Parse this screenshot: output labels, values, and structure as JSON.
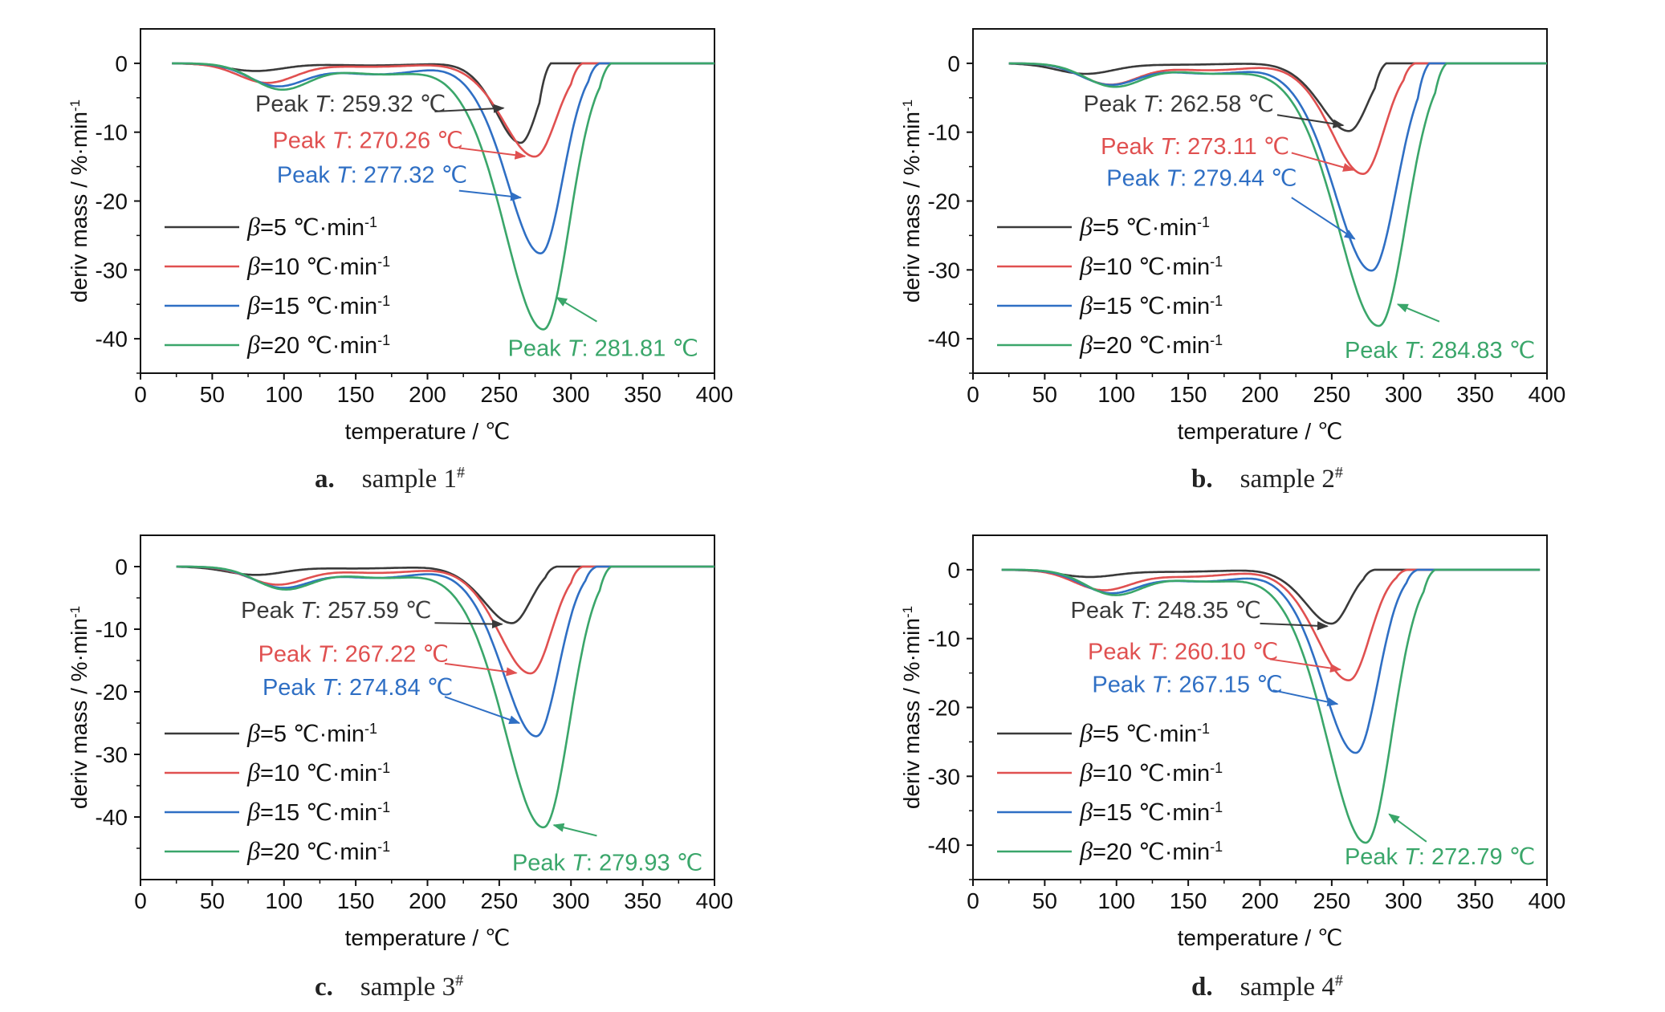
{
  "figure": {
    "colors": {
      "bg": "#ffffff",
      "axis": "#111111"
    },
    "legend": {
      "unit_label": "℃·min",
      "unit_sup": "-1",
      "entries": [
        {
          "symbol": "β",
          "value": "=5",
          "color": "#3a3a3a"
        },
        {
          "symbol": "β",
          "value": "=10",
          "color": "#e05050"
        },
        {
          "symbol": "β",
          "value": "=15",
          "color": "#2f6fc4"
        },
        {
          "symbol": "β",
          "value": "=20",
          "color": "#3aa66a"
        }
      ]
    },
    "peak_prefix": "Peak",
    "peak_var": "T",
    "peak_unit": "℃"
  },
  "chart_data": [
    {
      "type": "line",
      "caption_letter": "a.",
      "caption_text": "sample 1",
      "caption_sup": "#",
      "xlabel": "temperature / ℃",
      "ylabel": "deriv mass / %·min",
      "ylabel_sup": "-1",
      "xlim": [
        0,
        400
      ],
      "ylim": [
        -45,
        5
      ],
      "xticks": [
        "0",
        "50",
        "100",
        "150",
        "200",
        "250",
        "300",
        "350",
        "400"
      ],
      "yticks": [
        "0",
        "-10",
        "-20",
        "-30",
        "-40"
      ],
      "series": [
        {
          "name": "β=5 ℃·min-1",
          "peak_x": 265,
          "peak_y": -11.5,
          "peak_label": ": 259.32 ℃",
          "profile": {
            "start": 22,
            "end": 400,
            "early_x": 80,
            "early_y": -1.1,
            "plateau_x": 160,
            "plateau_y": -0.3,
            "return_x": 278,
            "width": 13
          },
          "arrow": {
            "from_x": 205,
            "from_y": -7.0,
            "to_x": 253,
            "to_y": -6.5
          }
        },
        {
          "name": "β=10 ℃·min-1",
          "peak_x": 275,
          "peak_y": -13.5,
          "peak_label": ": 270.26 ℃",
          "profile": {
            "start": 22,
            "end": 400,
            "early_x": 88,
            "early_y": -2.8,
            "plateau_x": 160,
            "plateau_y": -0.5,
            "return_x": 300,
            "width": 17
          },
          "arrow": {
            "from_x": 222,
            "from_y": -12.3,
            "to_x": 268,
            "to_y": -13.5
          }
        },
        {
          "name": "β=15 ℃·min-1",
          "peak_x": 279,
          "peak_y": -27.5,
          "peak_label": ": 277.32 ℃",
          "profile": {
            "start": 22,
            "end": 400,
            "early_x": 95,
            "early_y": -3.2,
            "plateau_x": 165,
            "plateau_y": -1.6,
            "return_x": 312,
            "width": 18
          },
          "arrow": {
            "from_x": 222,
            "from_y": -18.5,
            "to_x": 265,
            "to_y": -19.5
          }
        },
        {
          "name": "β=20 ℃·min-1",
          "peak_x": 281,
          "peak_y": -38.5,
          "peak_label": ": 281.81 ℃",
          "profile": {
            "start": 22,
            "end": 400,
            "early_x": 98,
            "early_y": -3.7,
            "plateau_x": 170,
            "plateau_y": -1.6,
            "return_x": 320,
            "width": 21
          },
          "arrow": {
            "from_x": 318,
            "from_y": -37.5,
            "to_x": 290,
            "to_y": -34.0
          }
        }
      ],
      "labels": [
        {
          "x": 80,
          "y": -7.0
        },
        {
          "x": 92,
          "y": -12.3
        },
        {
          "x": 95,
          "y": -17.3
        },
        {
          "x": 256,
          "y": -42.5
        }
      ]
    },
    {
      "type": "line",
      "caption_letter": "b.",
      "caption_text": "sample 2",
      "caption_sup": "#",
      "xlabel": "temperature / ℃",
      "ylabel": "deriv mass / %·min",
      "ylabel_sup": "-1",
      "xlim": [
        0,
        400
      ],
      "ylim": [
        -45,
        5
      ],
      "xticks": [
        "0",
        "50",
        "100",
        "150",
        "200",
        "250",
        "300",
        "350",
        "400"
      ],
      "yticks": [
        "0",
        "-10",
        "-20",
        "-30",
        "-40"
      ],
      "series": [
        {
          "name": "β=5 ℃·min-1",
          "peak_x": 262,
          "peak_y": -9.8,
          "peak_label": ": 262.58 ℃",
          "profile": {
            "start": 25,
            "end": 400,
            "early_x": 78,
            "early_y": -1.5,
            "plateau_x": 140,
            "plateau_y": -0.2,
            "return_x": 280,
            "width": 15
          },
          "arrow": {
            "from_x": 212,
            "from_y": -7.5,
            "to_x": 258,
            "to_y": -9.0
          }
        },
        {
          "name": "β=10 ℃·min-1",
          "peak_x": 272,
          "peak_y": -16.0,
          "peak_label": ": 273.11 ℃",
          "profile": {
            "start": 25,
            "end": 400,
            "early_x": 95,
            "early_y": -3.0,
            "plateau_x": 165,
            "plateau_y": -1.0,
            "return_x": 300,
            "width": 17
          },
          "arrow": {
            "from_x": 222,
            "from_y": -13.0,
            "to_x": 265,
            "to_y": -15.5
          }
        },
        {
          "name": "β=15 ℃·min-1",
          "peak_x": 278,
          "peak_y": -30.0,
          "peak_label": ": 279.44 ℃",
          "profile": {
            "start": 25,
            "end": 400,
            "early_x": 95,
            "early_y": -3.0,
            "plateau_x": 165,
            "plateau_y": -1.5,
            "return_x": 310,
            "width": 20
          },
          "arrow": {
            "from_x": 222,
            "from_y": -19.5,
            "to_x": 266,
            "to_y": -25.5
          }
        },
        {
          "name": "β=20 ℃·min-1",
          "peak_x": 283,
          "peak_y": -38.0,
          "peak_label": ": 284.83 ℃",
          "profile": {
            "start": 25,
            "end": 400,
            "early_x": 98,
            "early_y": -3.3,
            "plateau_x": 170,
            "plateau_y": -1.5,
            "return_x": 322,
            "width": 22
          },
          "arrow": {
            "from_x": 325,
            "from_y": -37.5,
            "to_x": 296,
            "to_y": -35.0
          }
        }
      ],
      "labels": [
        {
          "x": 77,
          "y": -7.0
        },
        {
          "x": 89,
          "y": -13.2
        },
        {
          "x": 93,
          "y": -17.8
        },
        {
          "x": 259,
          "y": -42.8
        }
      ]
    },
    {
      "type": "line",
      "caption_letter": "c.",
      "caption_text": "sample 3",
      "caption_sup": "#",
      "xlabel": "temperature / ℃",
      "ylabel": "deriv mass / %·min",
      "ylabel_sup": "-1",
      "xlim": [
        0,
        400
      ],
      "ylim": [
        -50,
        5
      ],
      "xticks": [
        "0",
        "50",
        "100",
        "150",
        "200",
        "250",
        "300",
        "350",
        "400"
      ],
      "yticks": [
        "0",
        "-10",
        "-20",
        "-30",
        "-40"
      ],
      "series": [
        {
          "name": "β=5 ℃·min-1",
          "peak_x": 259,
          "peak_y": -9.0,
          "peak_label": ": 257.59 ℃",
          "profile": {
            "start": 25,
            "end": 400,
            "early_x": 80,
            "early_y": -1.3,
            "plateau_x": 150,
            "plateau_y": -0.3,
            "return_x": 282,
            "width": 15
          },
          "arrow": {
            "from_x": 205,
            "from_y": -9.0,
            "to_x": 252,
            "to_y": -9.2
          }
        },
        {
          "name": "β=10 ℃·min-1",
          "peak_x": 272,
          "peak_y": -17.0,
          "peak_label": ": 267.22 ℃",
          "profile": {
            "start": 25,
            "end": 400,
            "early_x": 95,
            "early_y": -2.8,
            "plateau_x": 165,
            "plateau_y": -1.0,
            "return_x": 300,
            "width": 17
          },
          "arrow": {
            "from_x": 212,
            "from_y": -15.5,
            "to_x": 262,
            "to_y": -17.0
          }
        },
        {
          "name": "β=15 ℃·min-1",
          "peak_x": 276,
          "peak_y": -27.0,
          "peak_label": ": 274.84 ℃",
          "profile": {
            "start": 25,
            "end": 400,
            "early_x": 98,
            "early_y": -3.2,
            "plateau_x": 165,
            "plateau_y": -1.8,
            "return_x": 310,
            "width": 18
          },
          "arrow": {
            "from_x": 212,
            "from_y": -20.8,
            "to_x": 264,
            "to_y": -25.0
          }
        },
        {
          "name": "β=20 ℃·min-1",
          "peak_x": 281,
          "peak_y": -41.5,
          "peak_label": ": 279.93 ℃",
          "profile": {
            "start": 25,
            "end": 400,
            "early_x": 100,
            "early_y": -3.5,
            "plateau_x": 170,
            "plateau_y": -1.8,
            "return_x": 320,
            "width": 21
          },
          "arrow": {
            "from_x": 318,
            "from_y": -43.0,
            "to_x": 288,
            "to_y": -41.3
          }
        }
      ],
      "labels": [
        {
          "x": 70,
          "y": -8.2
        },
        {
          "x": 82,
          "y": -15.2
        },
        {
          "x": 85,
          "y": -20.5
        },
        {
          "x": 259,
          "y": -48.5
        }
      ]
    },
    {
      "type": "line",
      "caption_letter": "d.",
      "caption_text": "sample 4",
      "caption_sup": "#",
      "xlabel": "temperature / ℃",
      "ylabel": "deriv mass / %·min",
      "ylabel_sup": "-1",
      "xlim": [
        0,
        400
      ],
      "ylim": [
        -45,
        5
      ],
      "xticks": [
        "0",
        "50",
        "100",
        "150",
        "200",
        "250",
        "300",
        "350",
        "400"
      ],
      "yticks": [
        "0",
        "-10",
        "-20",
        "-30",
        "-40"
      ],
      "series": [
        {
          "name": "β=5 ℃·min-1",
          "peak_x": 250,
          "peak_y": -7.8,
          "peak_label": ": 248.35 ℃",
          "profile": {
            "start": 20,
            "end": 395,
            "early_x": 80,
            "early_y": -1.0,
            "plateau_x": 140,
            "plateau_y": -0.3,
            "return_x": 272,
            "width": 14
          },
          "arrow": {
            "from_x": 200,
            "from_y": -7.8,
            "to_x": 247,
            "to_y": -8.2
          }
        },
        {
          "name": "β=10 ℃·min-1",
          "peak_x": 262,
          "peak_y": -16.0,
          "peak_label": ": 260.10 ℃",
          "profile": {
            "start": 20,
            "end": 395,
            "early_x": 90,
            "early_y": -2.8,
            "plateau_x": 150,
            "plateau_y": -1.0,
            "return_x": 295,
            "width": 17
          },
          "arrow": {
            "from_x": 207,
            "from_y": -13.0,
            "to_x": 256,
            "to_y": -14.5
          }
        },
        {
          "name": "β=15 ℃·min-1",
          "peak_x": 267,
          "peak_y": -26.5,
          "peak_label": ": 267.15 ℃",
          "profile": {
            "start": 20,
            "end": 395,
            "early_x": 95,
            "early_y": -3.2,
            "plateau_x": 160,
            "plateau_y": -1.7,
            "return_x": 302,
            "width": 18
          },
          "arrow": {
            "from_x": 209,
            "from_y": -17.5,
            "to_x": 254,
            "to_y": -19.5
          }
        },
        {
          "name": "β=20 ℃·min-1",
          "peak_x": 274,
          "peak_y": -39.5,
          "peak_label": ": 272.79 ℃",
          "profile": {
            "start": 20,
            "end": 395,
            "early_x": 98,
            "early_y": -3.5,
            "plateau_x": 165,
            "plateau_y": -1.7,
            "return_x": 314,
            "width": 21
          },
          "arrow": {
            "from_x": 316,
            "from_y": -39.5,
            "to_x": 290,
            "to_y": -35.5
          }
        }
      ],
      "labels": [
        {
          "x": 68,
          "y": -7.0
        },
        {
          "x": 80,
          "y": -13.0
        },
        {
          "x": 83,
          "y": -17.8
        },
        {
          "x": 259,
          "y": -42.8
        }
      ]
    }
  ]
}
